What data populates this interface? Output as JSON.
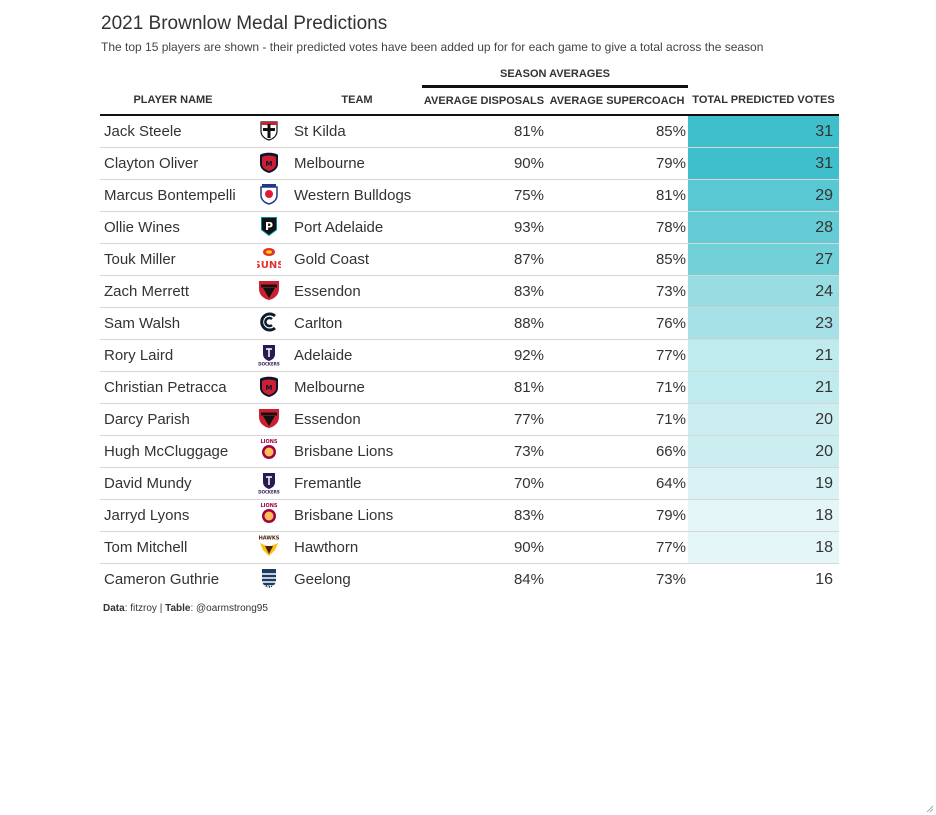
{
  "chart_data": {
    "type": "table",
    "title": "2021 Brownlow Medal Predictions",
    "subtitle": "The top 15 players are shown - their predicted votes have been added up for for each game to give a total across the season",
    "spanner_label": "SEASON AVERAGES",
    "columns": [
      "PLAYER NAME",
      "TEAM",
      "AVERAGE DISPOSALS",
      "AVERAGE SUPERCOACH",
      "TOTAL PREDICTED VOTES"
    ],
    "votes_color_range": [
      "#ffffff",
      "#3fbfcb"
    ],
    "rows": [
      {
        "player": "Jack Steele",
        "team": "St Kilda",
        "logo": "st-kilda-logo-icon",
        "disposals": "81%",
        "supercoach": "85%",
        "votes": 31
      },
      {
        "player": "Clayton Oliver",
        "team": "Melbourne",
        "logo": "melbourne-logo-icon",
        "disposals": "90%",
        "supercoach": "79%",
        "votes": 31
      },
      {
        "player": "Marcus Bontempelli",
        "team": "Western Bulldogs",
        "logo": "western-bulldogs-logo-icon",
        "disposals": "75%",
        "supercoach": "81%",
        "votes": 29
      },
      {
        "player": "Ollie Wines",
        "team": "Port Adelaide",
        "logo": "port-adelaide-logo-icon",
        "disposals": "93%",
        "supercoach": "78%",
        "votes": 28
      },
      {
        "player": "Touk Miller",
        "team": "Gold Coast",
        "logo": "gold-coast-logo-icon",
        "disposals": "87%",
        "supercoach": "85%",
        "votes": 27
      },
      {
        "player": "Zach Merrett",
        "team": "Essendon",
        "logo": "essendon-logo-icon",
        "disposals": "83%",
        "supercoach": "73%",
        "votes": 24
      },
      {
        "player": "Sam Walsh",
        "team": "Carlton",
        "logo": "carlton-logo-icon",
        "disposals": "88%",
        "supercoach": "76%",
        "votes": 23
      },
      {
        "player": "Rory Laird",
        "team": "Adelaide",
        "logo": "fremantle-logo-icon",
        "disposals": "92%",
        "supercoach": "77%",
        "votes": 21
      },
      {
        "player": "Christian Petracca",
        "team": "Melbourne",
        "logo": "melbourne-logo-icon",
        "disposals": "81%",
        "supercoach": "71%",
        "votes": 21
      },
      {
        "player": "Darcy Parish",
        "team": "Essendon",
        "logo": "essendon-logo-icon",
        "disposals": "77%",
        "supercoach": "71%",
        "votes": 20
      },
      {
        "player": "Hugh McCluggage",
        "team": "Brisbane Lions",
        "logo": "brisbane-lions-logo-icon",
        "disposals": "73%",
        "supercoach": "66%",
        "votes": 20
      },
      {
        "player": "David Mundy",
        "team": "Fremantle",
        "logo": "fremantle-logo-icon",
        "disposals": "70%",
        "supercoach": "64%",
        "votes": 19
      },
      {
        "player": "Jarryd Lyons",
        "team": "Brisbane Lions",
        "logo": "brisbane-lions-logo-icon",
        "disposals": "83%",
        "supercoach": "79%",
        "votes": 18
      },
      {
        "player": "Tom Mitchell",
        "team": "Hawthorn",
        "logo": "hawthorn-logo-icon",
        "disposals": "90%",
        "supercoach": "77%",
        "votes": 18
      },
      {
        "player": "Cameron Guthrie",
        "team": "Geelong",
        "logo": "geelong-logo-icon",
        "disposals": "84%",
        "supercoach": "73%",
        "votes": 16
      }
    ],
    "footer": {
      "data_label": "Data",
      "data_value": ": fitzroy | ",
      "table_label": "Table",
      "table_value": ": @oarmstrong95"
    }
  }
}
